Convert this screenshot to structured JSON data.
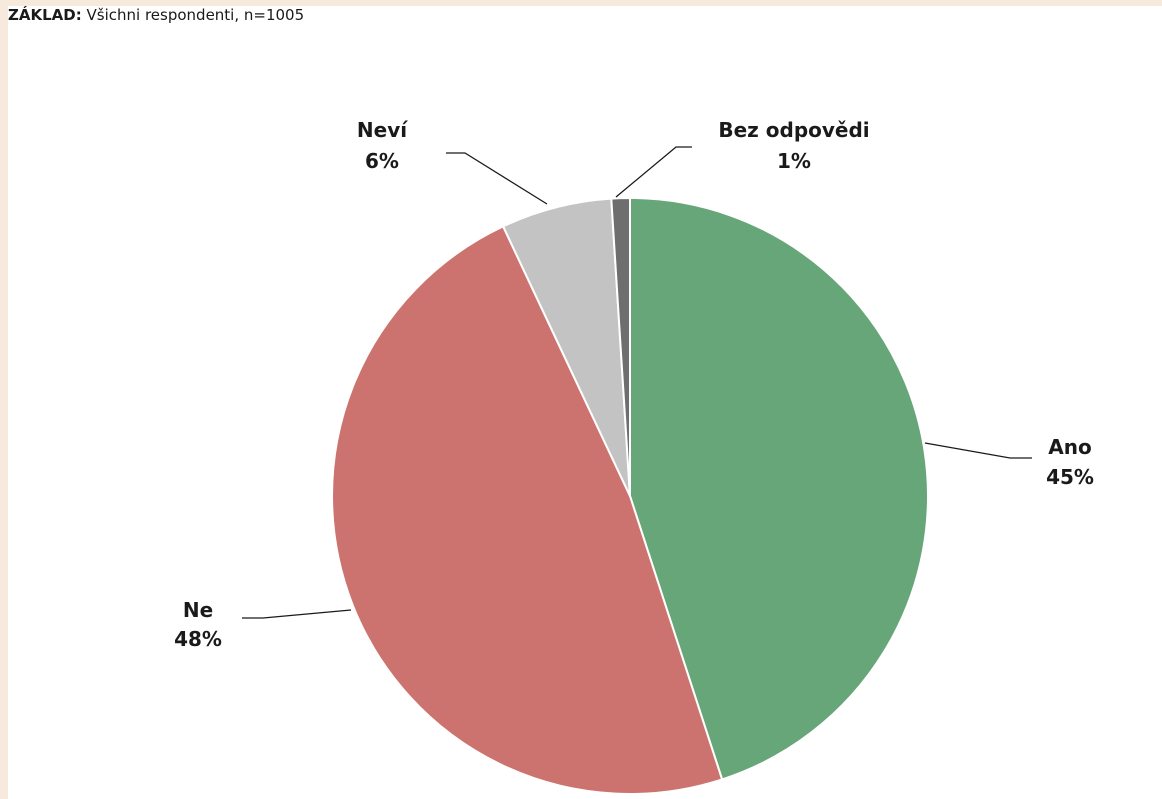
{
  "base": {
    "label": "ZÁKLAD:",
    "text": "Všichni respondenti, n=1005"
  },
  "chart_data": {
    "type": "pie",
    "slices": [
      {
        "name": "Ano",
        "value": 45,
        "label": "45%",
        "color": "#67a678"
      },
      {
        "name": "Ne",
        "value": 48,
        "label": "48%",
        "color": "#cd736f"
      },
      {
        "name": "Neví",
        "value": 6,
        "label": "6%",
        "color": "#c3c3c3"
      },
      {
        "name": "Bez odpovědi",
        "value": 1,
        "label": "1%",
        "color": "#6e6e6e"
      }
    ],
    "start": "12 o'clock",
    "direction": "clockwise",
    "legend": "none, category and percentage labels placed outside slices with leader lines"
  }
}
